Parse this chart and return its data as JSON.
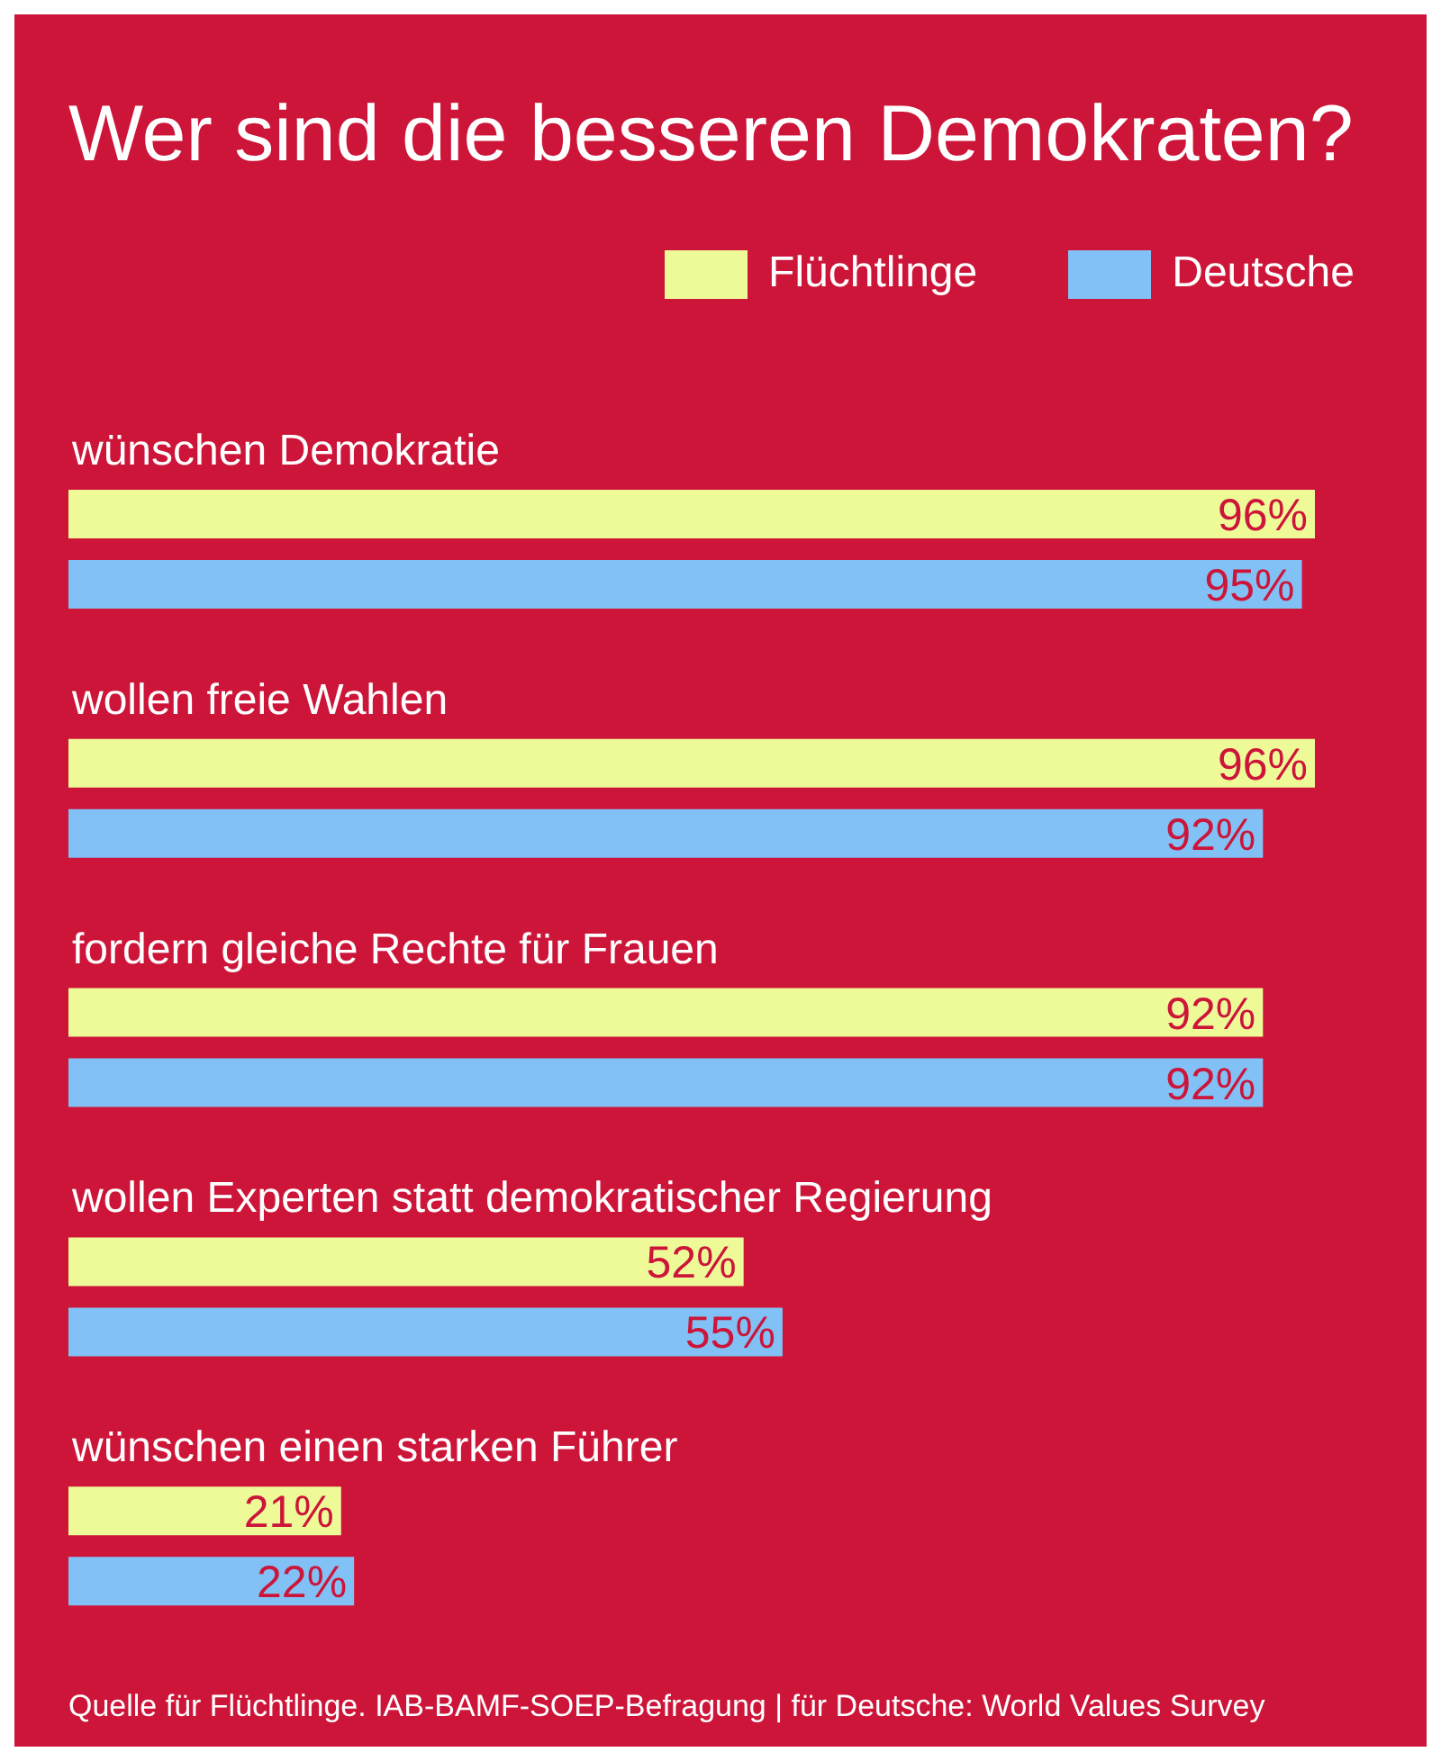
{
  "chart_data": {
    "type": "bar",
    "orientation": "horizontal",
    "title": "Wer sind die besseren Demokraten?",
    "categories": [
      "wünschen Demokratie",
      "wollen freie Wahlen",
      "fordern gleiche Rechte für Frauen",
      "wollen Experten statt demokratischer Regierung",
      "wünschen einen starken Führer"
    ],
    "series": [
      {
        "name": "Flüchtlinge",
        "color": "#eefa98",
        "values": [
          96,
          96,
          92,
          52,
          21
        ],
        "value_labels": [
          "96%",
          "96%",
          "92%",
          "52%",
          "21%"
        ]
      },
      {
        "name": "Deutsche",
        "color": "#82c1f5",
        "values": [
          95,
          92,
          92,
          55,
          22
        ],
        "value_labels": [
          "95%",
          "92%",
          "92%",
          "55%",
          "22%"
        ]
      }
    ],
    "legend": "top right",
    "grid": false,
    "annotations": [
      "Quelle für Flüchtlinge. IAB-BAMF-SOEP-Befragung | für Deutsche: World Values Survey"
    ]
  }
}
